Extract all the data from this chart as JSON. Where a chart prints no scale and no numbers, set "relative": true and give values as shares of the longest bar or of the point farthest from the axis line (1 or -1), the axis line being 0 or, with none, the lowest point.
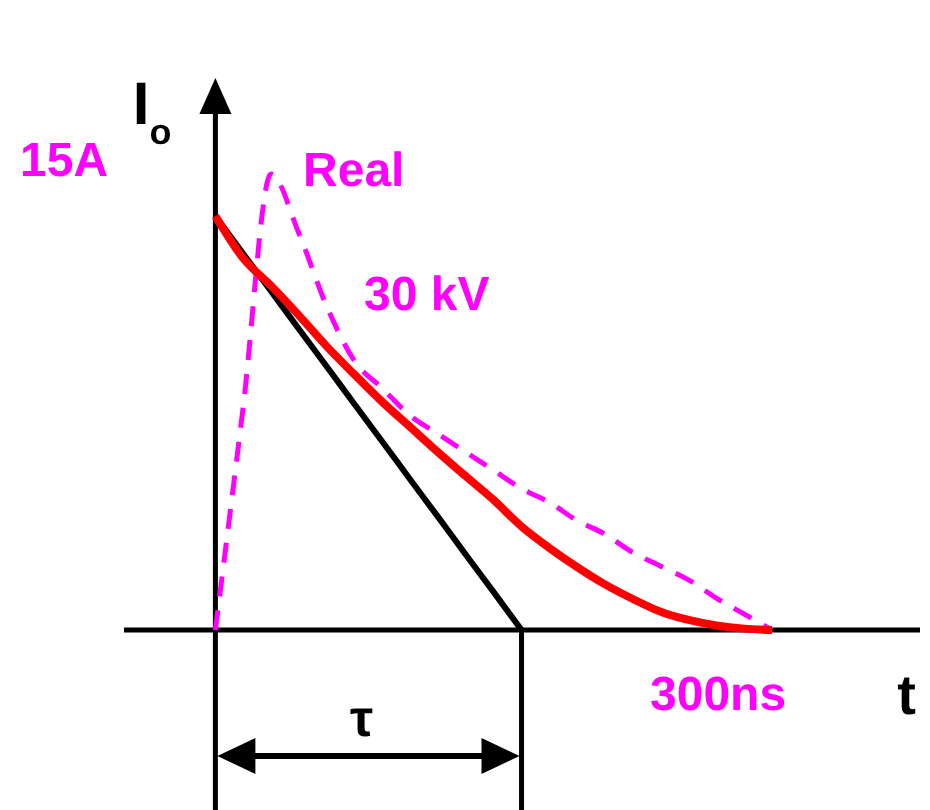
{
  "chart_data": {
    "type": "line",
    "relative": true,
    "xlabel": "t",
    "ylabel": "I$_{o}$",
    "legend": false,
    "categories": [
      null,
      null,
      null,
      null,
      null,
      null,
      null,
      null,
      null,
      null,
      null,
      null,
      null,
      null,
      null,
      null,
      null,
      null,
      null,
      null,
      null
    ],
    "series": [
      {
        "name": "Real",
        "color": "#ff00ff",
        "line_style": "dashed",
        "values": [
          0,
          0.49,
          1,
          0.87,
          0.71,
          0.59,
          0.53,
          0.47,
          0.43,
          0.39,
          0.35,
          0.31,
          0.28,
          0.24,
          0.21,
          0.17,
          0.14,
          0.11,
          0.07,
          0.035,
          0
        ]
      },
      {
        "color": "#000000",
        "values": [
          0.908,
          0.825,
          0.743,
          0.66,
          0.578,
          0.495,
          0.413,
          0.33,
          0.248,
          0.165,
          0.083,
          0,
          null,
          null,
          null,
          null,
          null,
          null,
          null,
          null,
          null
        ]
      },
      {
        "color": "#ff0000",
        "values": [
          0.908,
          0.815,
          0.755,
          0.69,
          0.622,
          0.56,
          0.5,
          0.445,
          0.39,
          0.337,
          0.285,
          0.227,
          0.18,
          0.138,
          0.1,
          0.068,
          0.04,
          0.022,
          0.01,
          0.003,
          0
        ]
      }
    ],
    "annotations": [
      "15A",
      "300ns",
      "30 kV",
      "τ"
    ]
  }
}
